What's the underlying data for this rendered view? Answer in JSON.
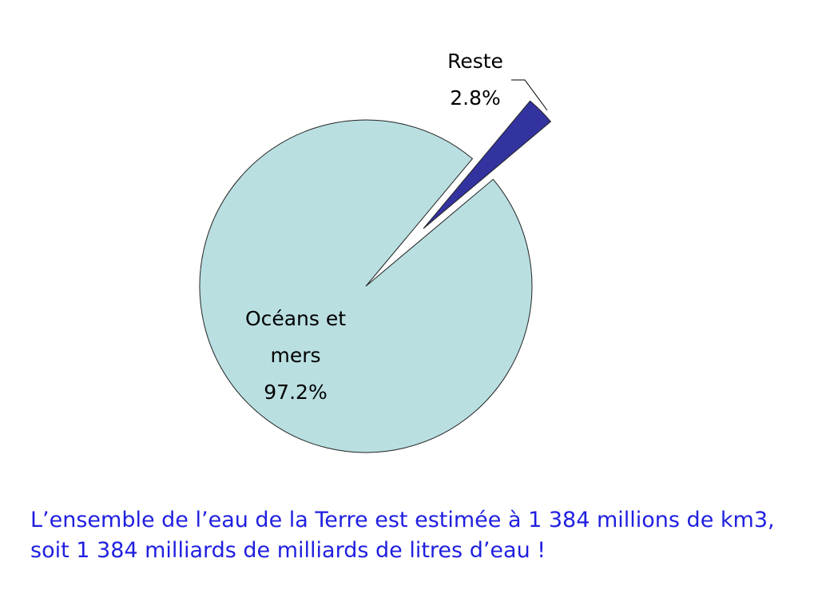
{
  "chart_data": {
    "type": "pie",
    "categories": [
      "Océans et mers",
      "Reste"
    ],
    "values": [
      97.2,
      2.8
    ],
    "value_labels": [
      "97.2%",
      "2.8%"
    ],
    "colors": [
      "#b9dfe1",
      "#3333a0"
    ],
    "explode": [
      false,
      true
    ],
    "caption": "L’ensemble de l’eau de la Terre est estimée à 1 384 millions de km3, soit 1 384 milliards de milliards de litres d’eau !"
  }
}
